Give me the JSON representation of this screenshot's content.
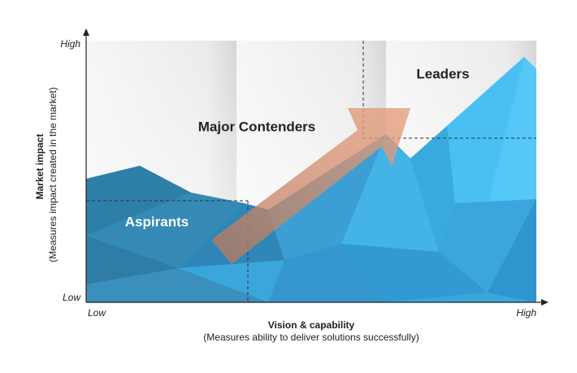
{
  "diagram": {
    "y_axis": {
      "title": "Market impact",
      "subtitle": "(Measures impact created in the market)",
      "high": "High",
      "low": "Low"
    },
    "x_axis": {
      "title": "Vision & capability",
      "subtitle": "(Measures ability to deliver solutions successfully)",
      "low": "Low",
      "high": "High"
    },
    "regions": [
      "Aspirants",
      "Major Contenders",
      "Leaders"
    ]
  }
}
